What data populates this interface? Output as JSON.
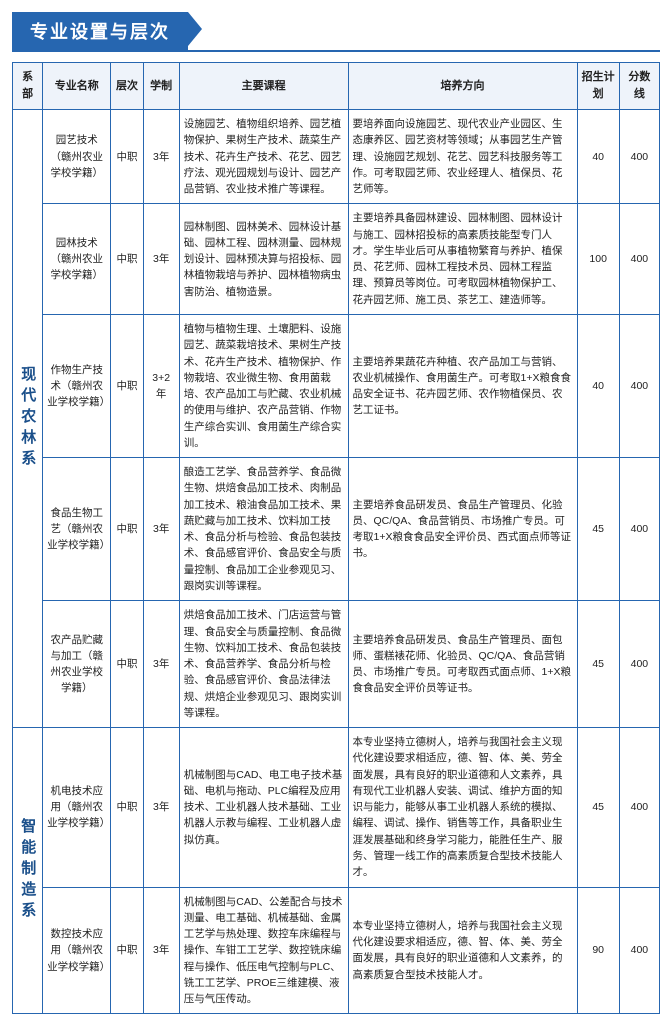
{
  "title": "专业设置与层次",
  "headers": {
    "dept": "系部",
    "major": "专业名称",
    "level": "层次",
    "years": "学制",
    "courses": "主要课程",
    "direction": "培养方向",
    "plan": "招生计划",
    "score": "分数线"
  },
  "depts": [
    {
      "name": "现代农林系",
      "rows": [
        {
          "major": "园艺技术（赣州农业学校学籍）",
          "level": "中职",
          "years": "3年",
          "courses": "设施园艺、植物组织培养、园艺植物保护、果树生产技术、蔬菜生产技术、花卉生产技术、花艺、园艺疗法、观光园规划与设计、园艺产品营销、农业技术推广等课程。",
          "direction": "要培养面向设施园艺、现代农业产业园区、生态康养区、园艺资材等领域；从事园艺生产管理、设施园艺规划、花艺、园艺科技服务等工作。可考取园艺师、农业经理人、植保员、花艺师等。",
          "plan": "40",
          "score": "400"
        },
        {
          "major": "园林技术（赣州农业学校学籍）",
          "level": "中职",
          "years": "3年",
          "courses": "园林制图、园林美术、园林设计基础、园林工程、园林测量、园林规划设计、园林预决算与招投标、园林植物栽培与养护、园林植物病虫害防治、植物造景。",
          "direction": "主要培养具备园林建设、园林制图、园林设计与施工、园林招投标的高素质技能型专门人才。学生毕业后可从事植物繁育与养护、植保员、花艺师、园林工程技术员、园林工程监理、预算员等岗位。可考取园林植物保护工、花卉园艺师、施工员、茶艺工、建造师等。",
          "plan": "100",
          "score": "400"
        },
        {
          "major": "作物生产技术（赣州农业学校学籍）",
          "level": "中职",
          "years": "3+2年",
          "courses": "植物与植物生理、土壤肥料、设施园艺、蔬菜栽培技术、果树生产技术、花卉生产技术、植物保护、作物栽培、农业微生物、食用菌栽培、农产品加工与贮藏、农业机械的使用与维护、农产品营销、作物生产综合实训、食用菌生产综合实训。",
          "direction": "主要培养果蔬花卉种植、农产品加工与营销、农业机械操作、食用菌生产。可考取1+X粮食食品安全证书、花卉园艺师、农作物植保员、农艺工证书。",
          "plan": "40",
          "score": "400"
        },
        {
          "major": "食品生物工艺（赣州农业学校学籍）",
          "level": "中职",
          "years": "3年",
          "courses": "酿造工艺学、食品营养学、食品微生物、烘焙食品加工技术、肉制品加工技术、粮油食品加工技术、果蔬贮藏与加工技术、饮料加工技术、食品分析与检验、食品包装技术、食品感官评价、食品安全与质量控制、食品加工企业参观见习、跟岗实训等课程。",
          "direction": "主要培养食品研发员、食品生产管理员、化验员、QC/QA、食品营销员、市场推广专员。可考取1+X粮食食品安全评价员、西式面点师等证书。",
          "plan": "45",
          "score": "400"
        },
        {
          "major": "农产品贮藏与加工（赣州农业学校学籍）",
          "level": "中职",
          "years": "3年",
          "courses": "烘焙食品加工技术、门店运营与管理、食品安全与质量控制、食品微生物、饮料加工技术、食品包装技术、食品营养学、食品分析与检验、食品感官评价、食品法律法规、烘焙企业参观见习、跟岗实训等课程。",
          "direction": "主要培养食品研发员、食品生产管理员、面包师、蛋糕裱花师、化验员、QC/QA、食品营销员、市场推广专员。可考取西式面点师、1+X粮食食品安全评价员等证书。",
          "plan": "45",
          "score": "400"
        }
      ]
    },
    {
      "name": "智能制造系",
      "rows": [
        {
          "major": "机电技术应用（赣州农业学校学籍）",
          "level": "中职",
          "years": "3年",
          "courses": "机械制图与CAD、电工电子技术基础、电机与拖动、PLC编程及应用技术、工业机器人技术基础、工业机器人示教与编程、工业机器人虚拟仿真。",
          "direction": "本专业坚持立德树人，培养与我国社会主义现代化建设要求相适应，德、智、体、美、劳全面发展，具有良好的职业道德和人文素养，具有现代工业机器人安装、调试、维护方面的知识与能力，能够从事工业机器人系统的模拟、编程、调试、操作、销售等工作，具备职业生涯发展基础和终身学习能力，能胜任生产、服务、管理一线工作的高素质复合型技术技能人才。",
          "plan": "45",
          "score": "400"
        },
        {
          "major": "数控技术应用（赣州农业学校学籍）",
          "level": "中职",
          "years": "3年",
          "courses": "机械制图与CAD、公差配合与技术测量、电工基础、机械基础、金属工艺学与热处理、数控车床编程与操作、车钳工工艺学、数控铣床编程与操作、低压电气控制与PLC、铣工工艺学、PROE三维建模、液压与气压传动。",
          "direction": "本专业坚持立德树人，培养与我国社会主义现代化建设要求相适应，德、智、体、美、劳全面发展，具有良好的职业道德和人文素养，的高素质复合型技术技能人才。",
          "plan": "90",
          "score": "400"
        }
      ]
    }
  ]
}
